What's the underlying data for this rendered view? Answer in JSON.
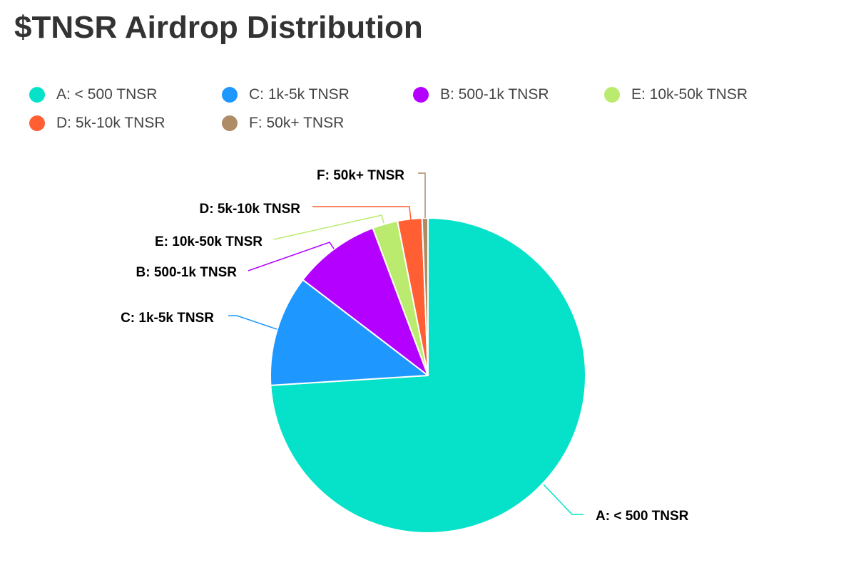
{
  "title": "$TNSR Airdrop Distribution",
  "chart_data": {
    "type": "pie",
    "title": "$TNSR Airdrop Distribution",
    "legend_position": "top",
    "legend_order": [
      "A: < 500 TNSR",
      "C: 1k-5k TNSR",
      "B: 500-1k TNSR",
      "E: 10k-50k TNSR",
      "D: 5k-10k TNSR",
      "F: 50k+ TNSR"
    ],
    "slices": [
      {
        "label": "A: < 500 TNSR",
        "value": 74.0,
        "color": "#05E2C9"
      },
      {
        "label": "C: 1k-5k TNSR",
        "value": 11.4,
        "color": "#1E97FF"
      },
      {
        "label": "B: 500-1k TNSR",
        "value": 8.9,
        "color": "#B300FF"
      },
      {
        "label": "E: 10k-50k TNSR",
        "value": 2.6,
        "color": "#BBEB6E"
      },
      {
        "label": "D: 5k-10k TNSR",
        "value": 2.5,
        "color": "#FF5F32"
      },
      {
        "label": "F: 50k+ TNSR",
        "value": 0.6,
        "color": "#AE8C66"
      }
    ]
  }
}
